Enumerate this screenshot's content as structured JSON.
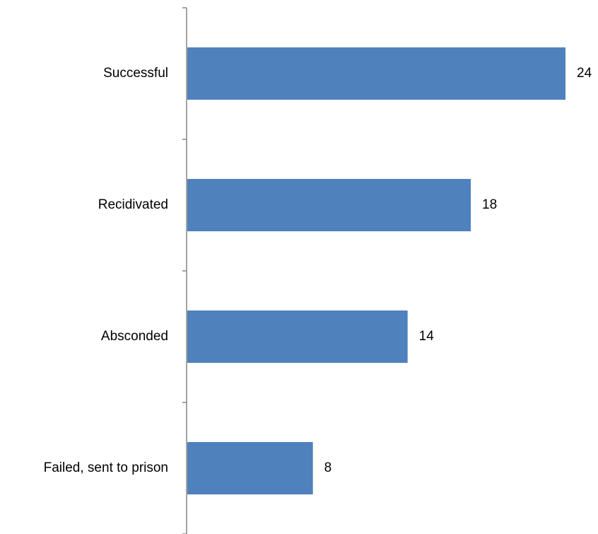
{
  "chart_data": {
    "type": "bar",
    "orientation": "horizontal",
    "title": "",
    "xlabel": "",
    "ylabel": "",
    "categories": [
      "Successful",
      "Recidivated",
      "Absconded",
      "Failed, sent to prison"
    ],
    "values": [
      24,
      18,
      14,
      8
    ],
    "value_labels": [
      "24",
      "18",
      "14",
      "8"
    ],
    "xlim": [
      0,
      24
    ],
    "bar_color": "#4f81bd",
    "axis_color": "#868686",
    "grid": false,
    "legend": "none"
  }
}
